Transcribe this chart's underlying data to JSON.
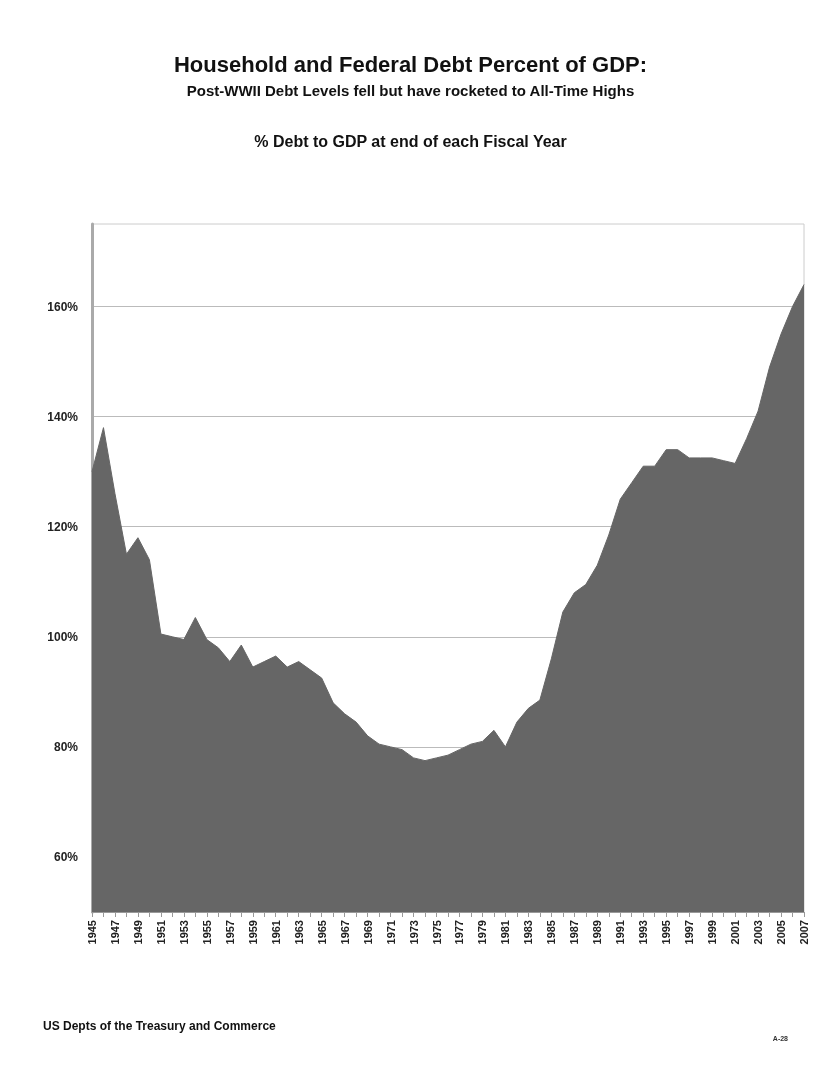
{
  "chart_data": {
    "type": "area",
    "title": "Household and Federal Debt Percent of GDP:",
    "subtitle": "Post-WWII Debt Levels fell but have rocketed to All-Time Highs",
    "ylabel": "% Debt to GDP at end of each Fiscal Year",
    "annotations": [
      "US Depts of the Treasury and Commerce",
      "A-28"
    ],
    "categories": [
      "1945",
      null,
      "1947",
      null,
      "1949",
      null,
      "1951",
      null,
      "1953",
      null,
      "1955",
      null,
      "1957",
      null,
      "1959",
      null,
      "1961",
      null,
      "1963",
      null,
      "1965",
      null,
      "1967",
      null,
      "1969",
      null,
      "1971",
      null,
      "1973",
      null,
      "1975",
      null,
      "1977",
      null,
      "1979",
      null,
      "1981",
      null,
      "1983",
      null,
      "1985",
      null,
      "1987",
      null,
      "1989",
      null,
      "1991",
      null,
      "1993",
      null,
      "1995",
      null,
      "1997",
      null,
      "1999",
      null,
      "2001",
      null,
      "2003",
      null,
      "2005",
      null,
      "2007"
    ],
    "series": [
      {
        "color": "#666666",
        "values": [
          130,
          138,
          126,
          115,
          118,
          114,
          100.5,
          100,
          99.5,
          103.5,
          99.5,
          98,
          95.5,
          98.5,
          94.5,
          95.5,
          96.5,
          94.5,
          95.5,
          94,
          92.5,
          88,
          86,
          84.5,
          82,
          80.5,
          80,
          79.5,
          78,
          77.5,
          78,
          78.5,
          79.5,
          80.5,
          81,
          83,
          80,
          84.5,
          87,
          88.5,
          96,
          104.5,
          108,
          109.5,
          113,
          118.5,
          125,
          128,
          131,
          131,
          134,
          134,
          132.5,
          132.5,
          132.5,
          132,
          131.5,
          136,
          141,
          149,
          155,
          160,
          164
        ]
      }
    ],
    "ylim": [
      50,
      175
    ],
    "yticks": [
      {
        "value": 60,
        "label": "60%"
      },
      {
        "value": 80,
        "label": "80%"
      },
      {
        "value": 100,
        "label": "100%"
      },
      {
        "value": 120,
        "label": "120%"
      },
      {
        "value": 140,
        "label": "140%"
      },
      {
        "value": 160,
        "label": "160%"
      }
    ],
    "grid": "y"
  }
}
